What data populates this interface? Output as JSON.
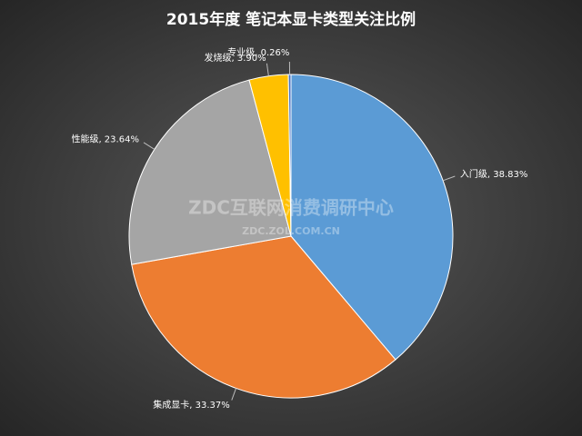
{
  "chart_data": {
    "type": "pie",
    "title": "2015年度 笔记本显卡类型关注比例",
    "values": [
      38.83,
      33.37,
      23.64,
      3.9,
      0.26
    ],
    "value_labels": [
      "入门级, 38.83%",
      "集成显卡, 33.37%",
      "性能级, 23.64%",
      "发烧级, 3.90%",
      "专业级, 0.26%"
    ],
    "colors": [
      "#5b9bd5",
      "#ed7d31",
      "#a5a5a5",
      "#ffc000",
      "#4472c4"
    ],
    "watermark": "ZDC互联网消费调研中心",
    "watermark_url": "ZDC.ZOL.COM.CN"
  }
}
